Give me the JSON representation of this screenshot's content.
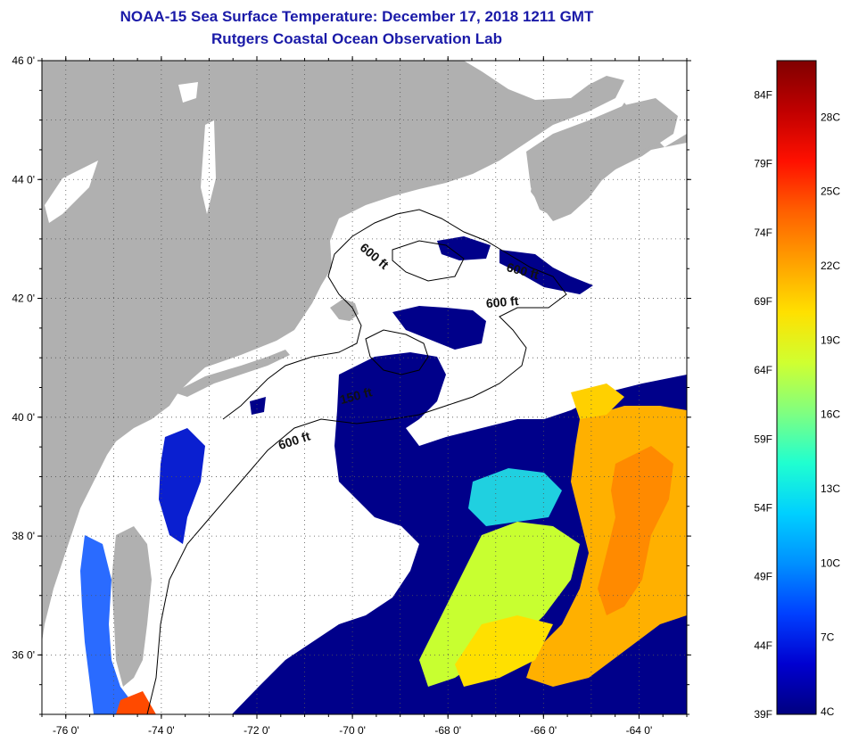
{
  "title_line1": "NOAA-15 Sea Surface Temperature:  December 17, 2018 1211 GMT",
  "title_line2": "Rutgers Coastal Ocean Observation Lab",
  "lat_labels": [
    "46 0'",
    "44 0'",
    "42 0'",
    "40 0'",
    "38 0'",
    "36 0'"
  ],
  "lon_labels": [
    "-76 0'",
    "-74 0'",
    "-72 0'",
    "-70 0'",
    "-68 0'",
    "-66 0'",
    "-64 0'"
  ],
  "lat_values": [
    46,
    44,
    42,
    40,
    38,
    36
  ],
  "lon_values": [
    -76,
    -74,
    -72,
    -70,
    -68,
    -66,
    -64
  ],
  "map_extent": {
    "lon_min": -76.5,
    "lon_max": -63.0,
    "lat_min": 35.0,
    "lat_max": 46.0
  },
  "contour_labels": [
    "600 ft",
    "600 ft",
    "600 ft",
    "150 ft",
    "600 ft"
  ],
  "colorbar": {
    "fahrenheit_labels": [
      "84F",
      "79F",
      "74F",
      "69F",
      "64F",
      "59F",
      "54F",
      "49F",
      "44F",
      "39F"
    ],
    "fahrenheit_values": [
      84,
      79,
      74,
      69,
      64,
      59,
      54,
      49,
      44,
      39
    ],
    "celsius_labels": [
      "28C",
      "25C",
      "22C",
      "19C",
      "16C",
      "13C",
      "10C",
      "7C",
      "4C"
    ],
    "celsius_values": [
      28,
      25,
      22,
      19,
      16,
      13,
      10,
      7,
      4
    ],
    "colors": [
      "#000080",
      "#0000d0",
      "#0040ff",
      "#0090ff",
      "#00d0ff",
      "#20ffd0",
      "#80ff80",
      "#d0ff30",
      "#ffe000",
      "#ffa000",
      "#ff6000",
      "#ff1000",
      "#c00000",
      "#800000"
    ]
  },
  "colors": {
    "title": "#1a1aa8",
    "land": "#b0b0b0",
    "ocean_cloud": "#ffffff",
    "cold_water": "#00008a"
  }
}
